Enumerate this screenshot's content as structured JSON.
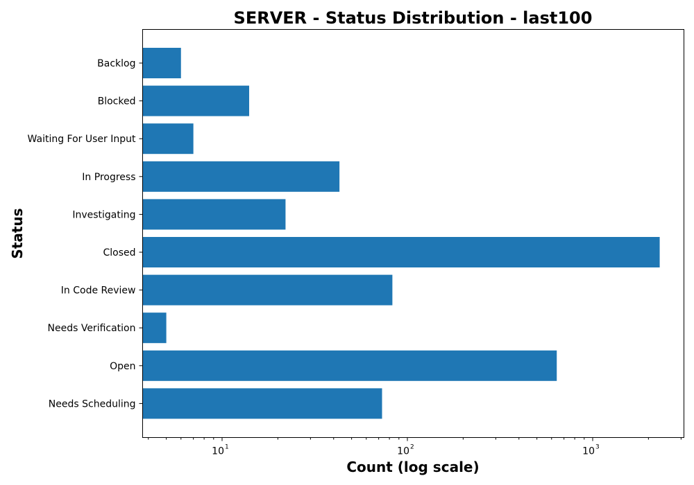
{
  "chart_data": {
    "type": "bar",
    "orientation": "horizontal",
    "title": "SERVER - Status Distribution - last100",
    "xlabel": "Count (log scale)",
    "ylabel": "Status",
    "xscale": "log",
    "xlim": [
      3.9,
      3200
    ],
    "grid": false,
    "color": "#1f77b4",
    "x_ticks": [
      {
        "base": "10",
        "exp": "1",
        "value": 10
      },
      {
        "base": "10",
        "exp": "2",
        "value": 100
      },
      {
        "base": "10",
        "exp": "3",
        "value": 1000
      }
    ],
    "categories": [
      "Backlog",
      "Blocked",
      "Waiting For User Input",
      "In Progress",
      "Investigating",
      "Closed",
      "In Code Review",
      "Needs Verification",
      "Open",
      "Needs Scheduling"
    ],
    "values": [
      6,
      14,
      7,
      43,
      22,
      2300,
      83,
      5,
      640,
      73
    ]
  }
}
